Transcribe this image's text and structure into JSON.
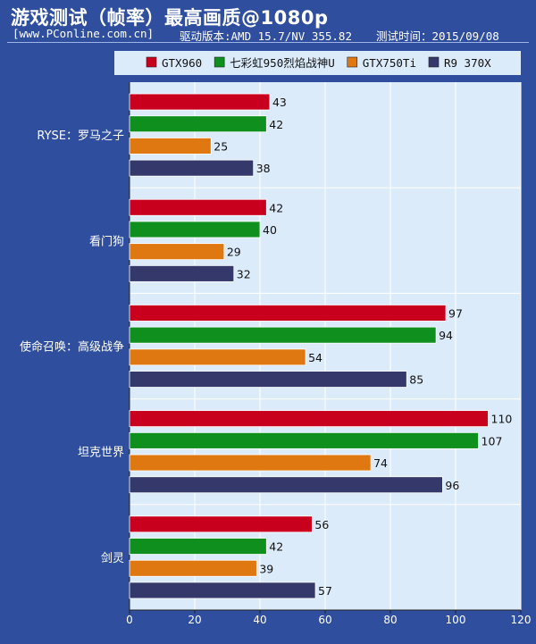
{
  "header": {
    "title": "游戏测试（帧率）最高画质@1080p",
    "site": "[www.PConline.com.cn]",
    "driver": "驱动版本:AMD 15.7/NV 355.82",
    "test_date": "测试时间：2015/09/08"
  },
  "chart_data": {
    "type": "bar",
    "orientation": "horizontal",
    "categories": [
      "RYSE：罗马之子",
      "看门狗",
      "使命召唤：高级战争",
      "坦克世界",
      "剑灵"
    ],
    "series": [
      {
        "name": "GTX960",
        "color": "#c8001e",
        "values": [
          43,
          42,
          97,
          110,
          56
        ]
      },
      {
        "name": "七彩虹950烈焰战神U",
        "color": "#0f8f1e",
        "values": [
          42,
          40,
          94,
          107,
          42
        ]
      },
      {
        "name": "GTX750Ti",
        "color": "#e07812",
        "values": [
          25,
          29,
          54,
          74,
          39
        ]
      },
      {
        "name": "R9 370X",
        "color": "#34386a",
        "values": [
          38,
          32,
          85,
          96,
          57
        ]
      }
    ],
    "xlim": [
      0,
      120
    ],
    "xticks": [
      0,
      20,
      40,
      60,
      80,
      100,
      120
    ],
    "legend_position": "top",
    "grid": true,
    "data_labels": true,
    "plot_background": "#dcebfa"
  }
}
